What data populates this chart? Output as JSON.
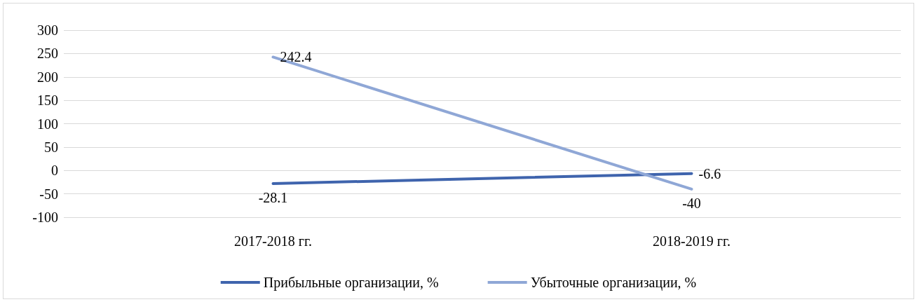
{
  "chart_data": {
    "type": "line",
    "categories": [
      "2017-2018 гг.",
      "2018-2019 гг."
    ],
    "series": [
      {
        "name": "Прибыльные организации, %",
        "color": "#3f64ad",
        "values": [
          -28.1,
          -6.6
        ]
      },
      {
        "name": "Убыточные организации, %",
        "color": "#8fa7d6",
        "values": [
          242.4,
          -40
        ]
      }
    ],
    "ylim": [
      -100,
      300
    ],
    "yticks": [
      -100,
      -50,
      0,
      50,
      100,
      150,
      200,
      250,
      300
    ],
    "grid": "y",
    "legend": "bottom",
    "data_labels": true,
    "marker": "none",
    "line_style": "solid"
  }
}
